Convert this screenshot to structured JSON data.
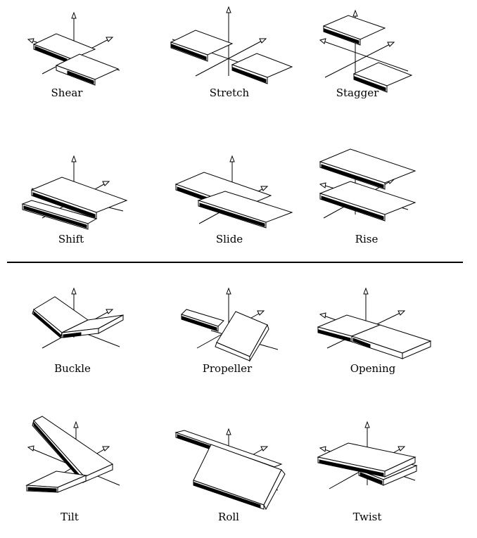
{
  "labels": {
    "shear": "Shear",
    "stretch": "Stretch",
    "stagger": "Stagger",
    "shift": "Shift",
    "slide": "Slide",
    "rise": "Rise",
    "buckle": "Buckle",
    "propeller": "Propeller",
    "opening": "Opening",
    "tilt": "Tilt",
    "roll": "Roll",
    "twist": "Twist"
  }
}
